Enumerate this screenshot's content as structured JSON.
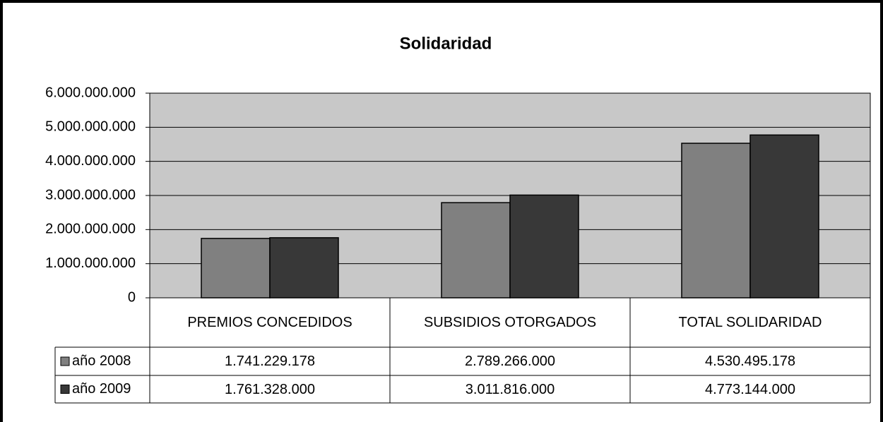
{
  "chart_data": {
    "type": "bar",
    "title": "Solidaridad",
    "categories": [
      "PREMIOS CONCEDIDOS",
      "SUBSIDIOS OTORGADOS",
      "TOTAL SOLIDARIDAD"
    ],
    "series": [
      {
        "name": "año 2008",
        "color": "#808080",
        "values": [
          1741229178,
          2789266000,
          4530495178
        ],
        "value_labels": [
          "1.741.229.178",
          "2.789.266.000",
          "4.530.495.178"
        ]
      },
      {
        "name": "año 2009",
        "color": "#383838",
        "values": [
          1761328000,
          3011816000,
          4773144000
        ],
        "value_labels": [
          "1.761.328.000",
          "3.011.816.000",
          "4.773.144.000"
        ]
      }
    ],
    "ylim": [
      0,
      6000000000
    ],
    "yticks": [
      0,
      {
        "value": 1000000000,
        "label": "1.000.000.000"
      },
      {
        "value": 2000000000,
        "label": "2.000.000.000"
      },
      {
        "value": 3000000000,
        "label": "3.000.000.000"
      },
      {
        "value": 4000000000,
        "label": "4.000.000.000"
      },
      {
        "value": 5000000000,
        "label": "5.000.000.000"
      },
      {
        "value": 6000000000,
        "label": "6.000.000.000"
      }
    ],
    "grid": true,
    "plot_background": "#c8c8c8"
  }
}
